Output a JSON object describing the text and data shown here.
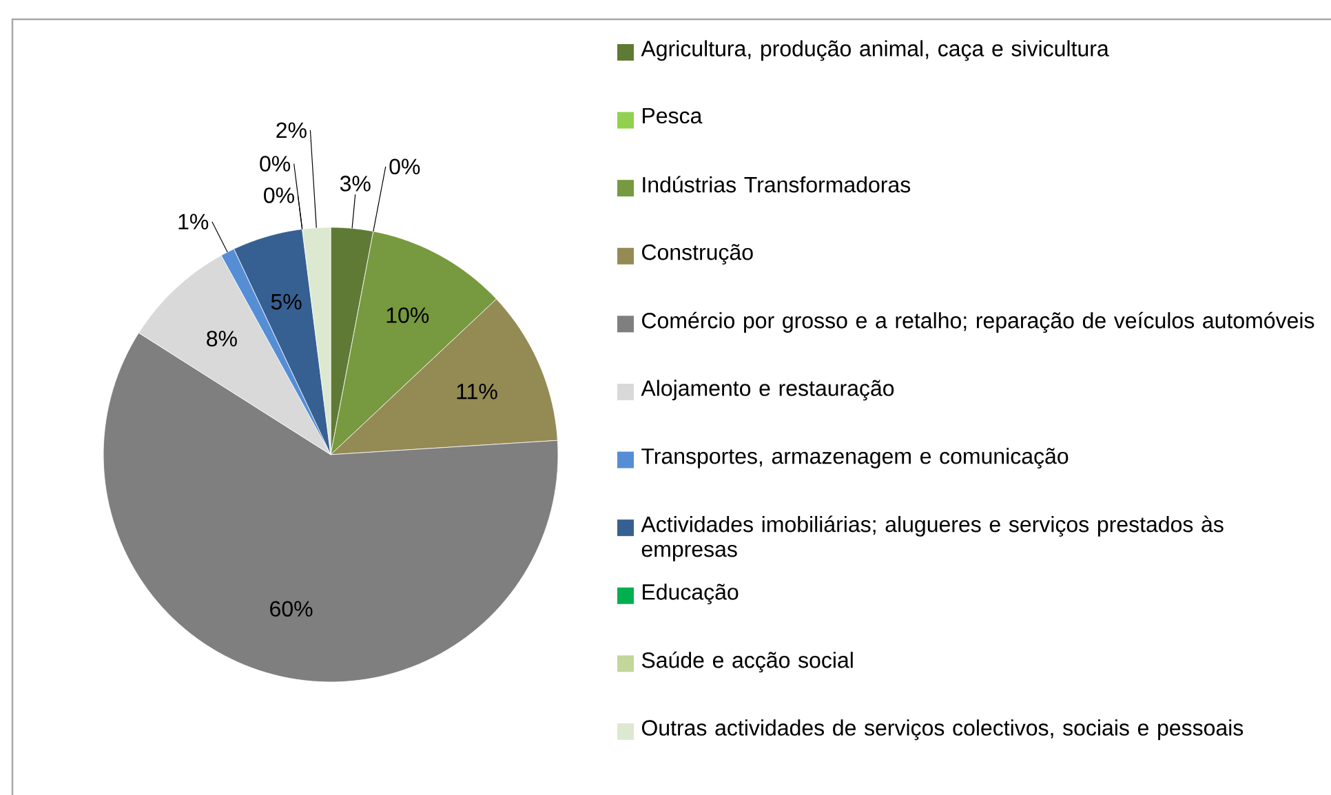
{
  "chart_data": {
    "type": "pie",
    "legend": "right",
    "value_labels": [
      "3%",
      "0%",
      "10%",
      "11%",
      "60%",
      "8%",
      "1%",
      "5%",
      "0%",
      "0%",
      "2%"
    ],
    "categories": [
      "Agricultura, produção animal, caça e sivicultura",
      "Pesca",
      "Indústrias Transformadoras",
      "Construção",
      "Comércio por grosso e a retalho; reparação de veículos automóveis",
      "Alojamento e restauração",
      "Transportes, armazenagem e comunicação",
      "Actividades imobiliárias; alugueres e serviços prestados às empresas",
      "Educação",
      "Saúde e acção social",
      "Outras actividades de serviços colectivos, sociais e pessoais"
    ],
    "values": [
      3,
      0,
      10,
      11,
      60,
      8,
      1,
      5,
      0,
      0,
      2
    ],
    "colors": [
      "#5f7a35",
      "#92d050",
      "#77993f",
      "#948a54",
      "#7f7f7f",
      "#d9d9d9",
      "#558ed5",
      "#376092",
      "#00b050",
      "#c3d69b",
      "#dde8d0"
    ]
  }
}
